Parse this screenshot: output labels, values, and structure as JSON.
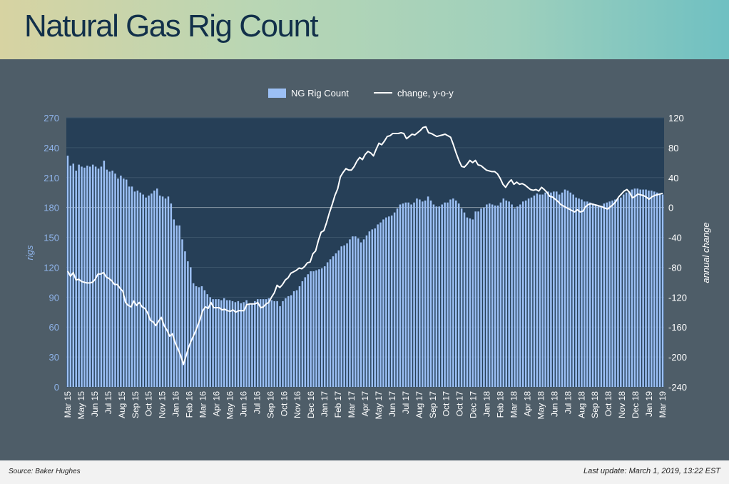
{
  "header": {
    "title": "Natural Gas Rig Count"
  },
  "footer": {
    "source": "Source: Baker Hughes",
    "last_update": "Last update: March 1, 2019, 13:22 EST"
  },
  "colors": {
    "bar": "#9cc0f5",
    "line": "#ffffff",
    "plot_bg": "#263f57",
    "left_axis": "#8fb4ea",
    "right_axis": "#ffffff"
  },
  "chart_data": {
    "type": "bar",
    "legend": [
      "NG Rig Count",
      "change, y-o-y"
    ],
    "legend_position": "top-center",
    "ylabel_left": "rigs",
    "ylabel_right": "annual change",
    "ylim_left": [
      0,
      270
    ],
    "ylim_right": [
      -240,
      120
    ],
    "yticks_left": [
      0,
      30,
      60,
      90,
      120,
      150,
      180,
      210,
      240,
      270
    ],
    "yticks_right": [
      -240,
      -200,
      -160,
      -120,
      -80,
      -40,
      0,
      40,
      80,
      120
    ],
    "x_tick_labels": [
      "Mar 15",
      "May 15",
      "Jun 15",
      "Jul 15",
      "Aug 15",
      "Sep 15",
      "Oct 15",
      "Nov 15",
      "Jan 16",
      "Feb 16",
      "Mar 16",
      "Apr 16",
      "May 16",
      "Jun 16",
      "Jul 16",
      "Sep 16",
      "Oct 16",
      "Nov 16",
      "Dec 16",
      "Jan 17",
      "Feb 17",
      "Mar 17",
      "Apr 17",
      "May 17",
      "Jun 17",
      "Jul 17",
      "Aug 17",
      "Sep 17",
      "Oct 17",
      "Oct 17",
      "Dec 17",
      "Jan 18",
      "Feb 18",
      "Mar 18",
      "Apr 18",
      "May 18",
      "Jun 18",
      "Jul 18",
      "Aug 18",
      "Sep 18",
      "Oct 18",
      "Nov 18",
      "Dec 18",
      "Jan 19",
      "Mar 19"
    ],
    "grid": true,
    "series": [
      {
        "name": "NG Rig Count",
        "axis": "left",
        "type": "bar",
        "values": [
          232,
          222,
          224,
          217,
          223,
          221,
          220,
          222,
          221,
          223,
          221,
          219,
          221,
          227,
          218,
          216,
          217,
          214,
          209,
          212,
          209,
          208,
          201,
          201,
          196,
          197,
          195,
          193,
          190,
          192,
          194,
          197,
          199,
          192,
          191,
          189,
          191,
          184,
          168,
          162,
          162,
          148,
          136,
          126,
          120,
          104,
          101,
          100,
          101,
          97,
          93,
          90,
          88,
          88,
          88,
          87,
          89,
          87,
          87,
          86,
          85,
          86,
          84,
          85,
          87,
          83,
          84,
          86,
          88,
          88,
          88,
          88,
          89,
          87,
          86,
          86,
          81,
          86,
          89,
          91,
          92,
          96,
          97,
          101,
          106,
          110,
          113,
          116,
          116,
          117,
          118,
          119,
          121,
          125,
          128,
          131,
          134,
          137,
          141,
          142,
          144,
          148,
          151,
          151,
          149,
          145,
          148,
          152,
          156,
          158,
          159,
          163,
          165,
          168,
          170,
          171,
          172,
          175,
          179,
          183,
          184,
          185,
          185,
          183,
          185,
          189,
          188,
          186,
          187,
          191,
          187,
          183,
          181,
          181,
          183,
          185,
          185,
          188,
          189,
          187,
          184,
          179,
          175,
          170,
          169,
          168,
          176,
          176,
          179,
          180,
          183,
          184,
          183,
          182,
          182,
          185,
          189,
          187,
          186,
          183,
          179,
          181,
          183,
          186,
          187,
          189,
          190,
          192,
          194,
          193,
          193,
          195,
          196,
          195,
          196,
          196,
          193,
          195,
          198,
          197,
          195,
          193,
          190,
          189,
          188,
          186,
          186,
          185,
          184,
          183,
          182,
          181,
          184,
          185,
          186,
          187,
          188,
          189,
          190,
          193,
          195,
          196,
          198,
          199,
          199,
          198,
          198,
          198,
          197,
          197,
          196,
          195,
          194,
          193
        ],
        "values_note": "weekly, Mar 15 – Mar 19"
      },
      {
        "name": "change, y-o-y",
        "axis": "right",
        "type": "line",
        "values": [
          -85,
          -92,
          -87,
          -97,
          -96,
          -99,
          -100,
          -101,
          -101,
          -100,
          -96,
          -89,
          -89,
          -87,
          -93,
          -95,
          -98,
          -103,
          -103,
          -108,
          -112,
          -127,
          -131,
          -133,
          -125,
          -131,
          -127,
          -133,
          -135,
          -141,
          -151,
          -153,
          -158,
          -152,
          -147,
          -158,
          -164,
          -172,
          -169,
          -181,
          -189,
          -198,
          -210,
          -198,
          -186,
          -177,
          -169,
          -160,
          -150,
          -138,
          -133,
          -135,
          -127,
          -134,
          -134,
          -134,
          -137,
          -136,
          -138,
          -139,
          -137,
          -140,
          -138,
          -138,
          -138,
          -130,
          -129,
          -129,
          -129,
          -127,
          -134,
          -133,
          -129,
          -127,
          -120,
          -114,
          -104,
          -107,
          -103,
          -97,
          -94,
          -88,
          -86,
          -84,
          -81,
          -82,
          -79,
          -74,
          -73,
          -62,
          -58,
          -44,
          -33,
          -31,
          -20,
          -7,
          4,
          16,
          25,
          41,
          47,
          52,
          50,
          50,
          55,
          62,
          67,
          64,
          71,
          75,
          73,
          69,
          78,
          86,
          84,
          89,
          95,
          96,
          99,
          99,
          99,
          100,
          99,
          92,
          95,
          98,
          97,
          100,
          103,
          107,
          108,
          100,
          99,
          97,
          95,
          96,
          97,
          98,
          96,
          94,
          84,
          73,
          63,
          55,
          54,
          58,
          63,
          60,
          63,
          57,
          56,
          53,
          50,
          49,
          48,
          48,
          45,
          39,
          31,
          27,
          33,
          37,
          31,
          34,
          31,
          32,
          30,
          27,
          24,
          23,
          24,
          22,
          27,
          24,
          20,
          15,
          14,
          11,
          8,
          4,
          2,
          0,
          -2,
          -4,
          -6,
          -3,
          -6,
          -5,
          1,
          4,
          5,
          4,
          3,
          2,
          1,
          -1,
          -2,
          1,
          4,
          8,
          14,
          18,
          22,
          24,
          20,
          13,
          15,
          18,
          17,
          16,
          14,
          11,
          14,
          16,
          17,
          18,
          19
        ]
      }
    ]
  }
}
